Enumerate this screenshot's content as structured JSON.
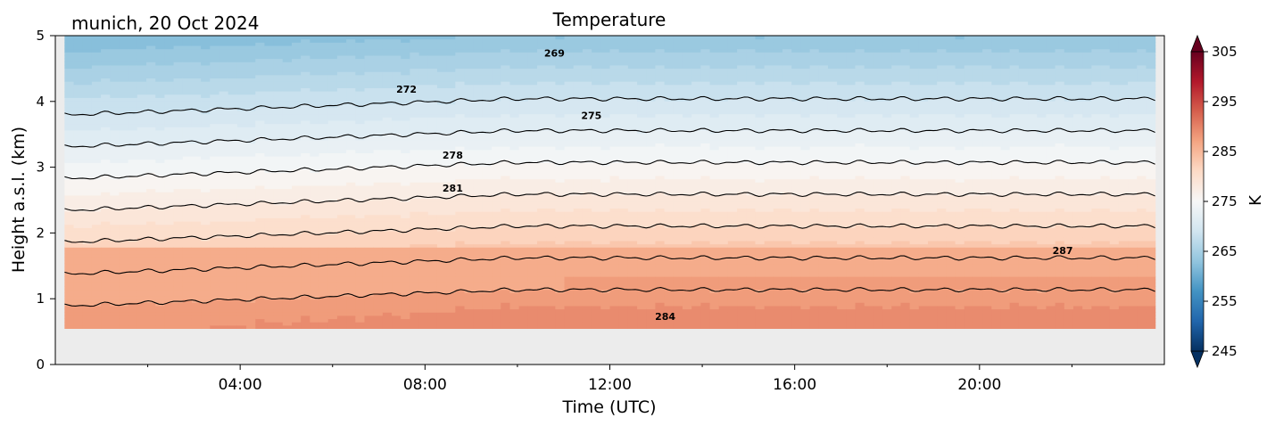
{
  "chart_data": {
    "type": "heatmap",
    "title": "Temperature",
    "subtitle": "munich, 20 Oct 2024",
    "xlabel": "Time (UTC)",
    "ylabel": "Height a.s.l. (km)",
    "xlim_hours": [
      0,
      24
    ],
    "ylim": [
      0,
      5
    ],
    "x_ticks": [
      {
        "hour": 4,
        "label": "04:00"
      },
      {
        "hour": 8,
        "label": "08:00"
      },
      {
        "hour": 12,
        "label": "12:00"
      },
      {
        "hour": 16,
        "label": "16:00"
      },
      {
        "hour": 20,
        "label": "20:00"
      }
    ],
    "y_ticks": [
      "0",
      "1",
      "2",
      "3",
      "4",
      "5"
    ],
    "data_extent": {
      "hours": [
        0.2,
        23.8
      ],
      "height_km": [
        0.55,
        5.0
      ]
    },
    "no_data_color": "#ececec",
    "colorbar": {
      "label": "K",
      "range": [
        245,
        305
      ],
      "ticks": [
        "245",
        "255",
        "265",
        "275",
        "285",
        "295",
        "305"
      ],
      "colormap": "RdBu_r",
      "extend": "both"
    },
    "contours": [
      {
        "level": 287,
        "label": "287",
        "label_at": [
          21.8,
          1.68
        ]
      },
      {
        "level": 284,
        "label": "284",
        "label_at": [
          13.2,
          0.68
        ]
      },
      {
        "level": 281,
        "label": "281",
        "label_at": [
          8.6,
          2.63
        ]
      },
      {
        "level": 278,
        "label": "278",
        "label_at": [
          8.6,
          3.13
        ]
      },
      {
        "level": 275,
        "label": "275",
        "label_at": [
          11.6,
          3.73
        ]
      },
      {
        "level": 272,
        "label": "272",
        "label_at": [
          7.6,
          4.13
        ]
      },
      {
        "level": 269,
        "label": "269",
        "label_at": [
          10.8,
          4.68
        ]
      }
    ]
  }
}
